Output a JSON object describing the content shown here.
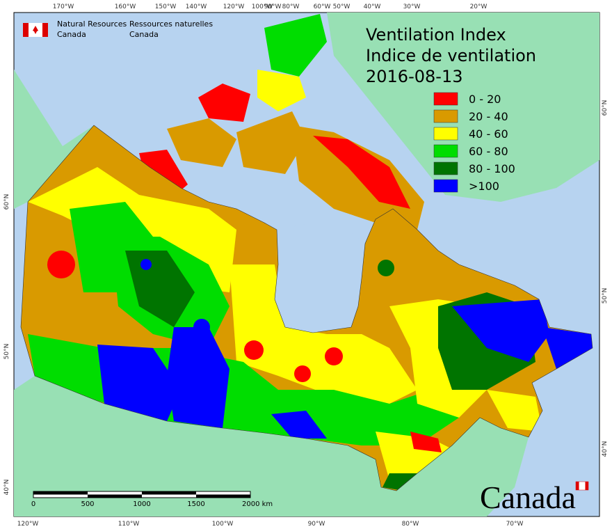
{
  "header": {
    "logo_en": [
      "Natural Resources",
      "Canada"
    ],
    "logo_fr": [
      "Ressources naturelles",
      "Canada"
    ]
  },
  "title": [
    "Ventilation Index",
    "Indice de ventilation",
    "2016-08-13"
  ],
  "legend": [
    {
      "label": "0 - 20",
      "color": "#ff0000"
    },
    {
      "label": "20 - 40",
      "color": "#d99a00"
    },
    {
      "label": "40 - 60",
      "color": "#ffff00"
    },
    {
      "label": "60 - 80",
      "color": "#00dd00"
    },
    {
      "label": "80 - 100",
      "color": "#007400"
    },
    {
      "label": ">100",
      "color": "#0000ff"
    }
  ],
  "axes": {
    "top": [
      "170°W",
      "160°W",
      "150°W",
      "140°W",
      "120°W",
      "100°W",
      "90°W",
      "80°W",
      "60°W",
      "50°W",
      "40°W",
      "30°W",
      "20°W"
    ],
    "bottom": [
      "120°W",
      "110°W",
      "100°W",
      "90°W",
      "80°W",
      "70°W"
    ],
    "left": [
      "60°N",
      "50°N",
      "40°N"
    ],
    "right": [
      "60°N",
      "50°N",
      "40°N"
    ]
  },
  "scale_bar": [
    "0",
    "500",
    "1000",
    "1500",
    "2000 km"
  ],
  "wordmark": "Canada"
}
